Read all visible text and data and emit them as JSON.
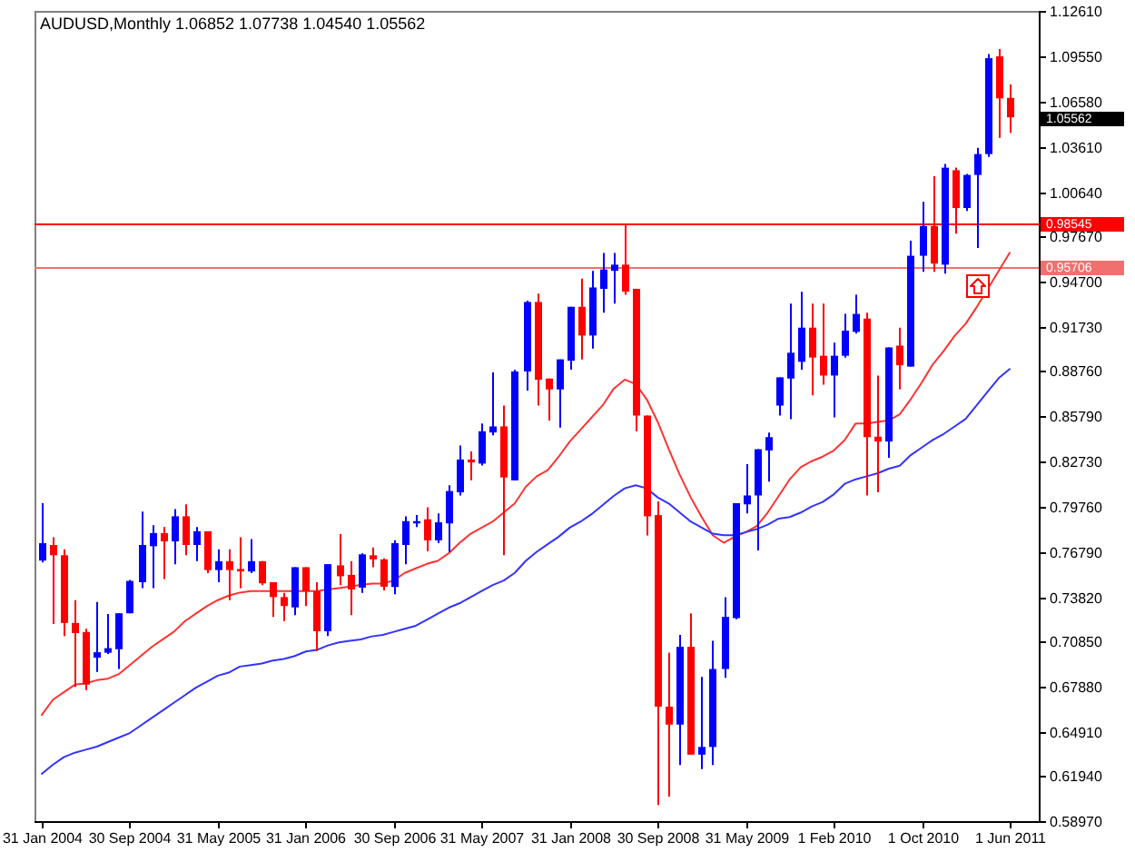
{
  "chart_data": {
    "type": "candlestick",
    "title": "AUDUSD,Monthly 1.06852 1.07738 1.04540 1.05562",
    "categories": [
      "31 Jan 2004",
      null,
      null,
      null,
      null,
      null,
      null,
      null,
      "30 Sep 2004",
      null,
      null,
      null,
      null,
      null,
      null,
      null,
      "31 May 2005",
      null,
      null,
      null,
      null,
      null,
      null,
      null,
      "31 Jan 2006",
      null,
      null,
      null,
      null,
      null,
      null,
      null,
      "30 Sep 2006",
      null,
      null,
      null,
      null,
      null,
      null,
      null,
      "31 May 2007",
      null,
      null,
      null,
      null,
      null,
      null,
      null,
      "31 Jan 2008",
      null,
      null,
      null,
      null,
      null,
      null,
      null,
      "30 Sep 2008",
      null,
      null,
      null,
      null,
      null,
      null,
      null,
      "31 May 2009",
      null,
      null,
      null,
      null,
      null,
      null,
      null,
      "1 Feb 2010",
      null,
      null,
      null,
      null,
      null,
      null,
      null,
      "1 Oct 2010",
      null,
      null,
      null,
      null,
      null,
      null,
      null,
      "1 Jun 2011"
    ],
    "ohlc": [
      [
        0.7622,
        0.8002,
        0.761,
        0.7737
      ],
      [
        0.7725,
        0.7776,
        0.7202,
        0.7657
      ],
      [
        0.7657,
        0.7697,
        0.7122,
        0.7209
      ],
      [
        0.7209,
        0.736,
        0.6785,
        0.7142
      ],
      [
        0.7149,
        0.717,
        0.6765,
        0.6801
      ],
      [
        0.6979,
        0.7348,
        0.6884,
        0.7015
      ],
      [
        0.7012,
        0.7268,
        0.7003,
        0.7042
      ],
      [
        0.7035,
        0.7273,
        0.6904,
        0.7273
      ],
      [
        0.7273,
        0.7494,
        0.7273,
        0.7487
      ],
      [
        0.7479,
        0.7946,
        0.744,
        0.7725
      ],
      [
        0.7717,
        0.7856,
        0.744,
        0.7804
      ],
      [
        0.7804,
        0.7844,
        0.7499,
        0.7749
      ],
      [
        0.7749,
        0.7963,
        0.7598,
        0.7915
      ],
      [
        0.7915,
        0.7994,
        0.7657,
        0.7725
      ],
      [
        0.7725,
        0.7844,
        0.7618,
        0.7816
      ],
      [
        0.7816,
        0.7816,
        0.7538,
        0.7559
      ],
      [
        0.7559,
        0.7697,
        0.7479,
        0.7618
      ],
      [
        0.7618,
        0.7697,
        0.736,
        0.7559
      ],
      [
        0.7566,
        0.7776,
        0.744,
        0.755
      ],
      [
        0.755,
        0.7764,
        0.7538,
        0.7618
      ],
      [
        0.7618,
        0.7618,
        0.7459,
        0.7471
      ],
      [
        0.7479,
        0.7479,
        0.7249,
        0.738
      ],
      [
        0.738,
        0.7408,
        0.7221,
        0.7321
      ],
      [
        0.7312,
        0.7578,
        0.7261,
        0.7578
      ],
      [
        0.7578,
        0.7578,
        0.7321,
        0.7419
      ],
      [
        0.7419,
        0.7479,
        0.7023,
        0.7154
      ],
      [
        0.7154,
        0.7598,
        0.7122,
        0.7598
      ],
      [
        0.759,
        0.7797,
        0.7459,
        0.7518
      ],
      [
        0.7527,
        0.7618,
        0.7261,
        0.7431
      ],
      [
        0.7443,
        0.7669,
        0.7408,
        0.7663
      ],
      [
        0.7657,
        0.7709,
        0.7578,
        0.763
      ],
      [
        0.763,
        0.7637,
        0.7425,
        0.7449
      ],
      [
        0.7447,
        0.7756,
        0.7399,
        0.7737
      ],
      [
        0.7725,
        0.7915,
        0.7598,
        0.7883
      ],
      [
        0.7868,
        0.7923,
        0.7844,
        0.7883
      ],
      [
        0.7895,
        0.7975,
        0.7685,
        0.7756
      ],
      [
        0.7756,
        0.7934,
        0.7737,
        0.7875
      ],
      [
        0.7868,
        0.8121,
        0.7678,
        0.8082
      ],
      [
        0.8074,
        0.8383,
        0.8053,
        0.8291
      ],
      [
        0.8291,
        0.8344,
        0.8153,
        0.8272
      ],
      [
        0.8264,
        0.8529,
        0.8252,
        0.8478
      ],
      [
        0.847,
        0.8867,
        0.8451,
        0.851
      ],
      [
        0.851,
        0.8648,
        0.7657,
        0.8172
      ],
      [
        0.8153,
        0.8886,
        0.8153,
        0.8874
      ],
      [
        0.8874,
        0.9343,
        0.8748,
        0.9334
      ],
      [
        0.9334,
        0.939,
        0.8648,
        0.8819
      ],
      [
        0.8827,
        0.8827,
        0.8549,
        0.8755
      ],
      [
        0.8755,
        0.8954,
        0.8502,
        0.8954
      ],
      [
        0.8945,
        0.9302,
        0.8886,
        0.9302
      ],
      [
        0.9302,
        0.9489,
        0.8954,
        0.9112
      ],
      [
        0.9112,
        0.954,
        0.9025,
        0.943
      ],
      [
        0.9421,
        0.9659,
        0.9263,
        0.9549
      ],
      [
        0.954,
        0.9659,
        0.9323,
        0.9581
      ],
      [
        0.9581,
        0.9854,
        0.9382,
        0.9402
      ],
      [
        0.9421,
        0.9421,
        0.8478,
        0.8582
      ],
      [
        0.8582,
        0.8582,
        0.7788,
        0.7915
      ],
      [
        0.7923,
        0.8014,
        0.6004,
        0.6655
      ],
      [
        0.6655,
        0.7012,
        0.606,
        0.6536
      ],
      [
        0.6536,
        0.713,
        0.6269,
        0.7051
      ],
      [
        0.7051,
        0.7273,
        0.6337,
        0.6337
      ],
      [
        0.6337,
        0.6852,
        0.6242,
        0.6388
      ],
      [
        0.6388,
        0.709,
        0.6269,
        0.6904
      ],
      [
        0.6904,
        0.738,
        0.6845,
        0.7249
      ],
      [
        0.7241,
        0.8002,
        0.7233,
        0.8002
      ],
      [
        0.7994,
        0.826,
        0.7934,
        0.8053
      ],
      [
        0.8053,
        0.8359,
        0.7689,
        0.8359
      ],
      [
        0.8351,
        0.847,
        0.8145,
        0.8439
      ],
      [
        0.8648,
        0.8835,
        0.8582,
        0.8835
      ],
      [
        0.8827,
        0.9323,
        0.8558,
        0.8998
      ],
      [
        0.8938,
        0.9402,
        0.8886,
        0.9164
      ],
      [
        0.9164,
        0.9323,
        0.8716,
        0.8966
      ],
      [
        0.8978,
        0.9323,
        0.8787,
        0.8847
      ],
      [
        0.8847,
        0.9064,
        0.857,
        0.8978
      ],
      [
        0.8978,
        0.9255,
        0.8966,
        0.9144
      ],
      [
        0.9136,
        0.9382,
        0.9124,
        0.9255
      ],
      [
        0.9224,
        0.9263,
        0.8053,
        0.8439
      ],
      [
        0.8442,
        0.8847,
        0.8074,
        0.841
      ],
      [
        0.841,
        0.9033,
        0.8303,
        0.9033
      ],
      [
        0.9045,
        0.9164,
        0.8755,
        0.8915
      ],
      [
        0.8906,
        0.9739,
        0.8906,
        0.964
      ],
      [
        0.964,
        0.9997,
        0.9533,
        0.9837
      ],
      [
        0.9837,
        1.0167,
        0.9533,
        0.9588
      ],
      [
        0.9581,
        1.0247,
        0.9521,
        1.0223
      ],
      [
        1.0206,
        1.0223,
        0.9786,
        0.9956
      ],
      [
        0.9956,
        1.0182,
        0.9937,
        1.0175
      ],
      [
        1.0175,
        1.0354,
        0.9691,
        1.0313
      ],
      [
        1.0313,
        1.0976,
        1.0294,
        1.0948
      ],
      [
        1.096,
        1.1008,
        1.042,
        1.0682
      ],
      [
        1.06852,
        1.07738,
        1.0454,
        1.05562
      ]
    ],
    "colors": [
      "#0000ff",
      "#ff0000",
      "#ff0000",
      "#ff0000",
      "#ff0000",
      "#0000ff",
      "#0000ff",
      "#0000ff",
      "#0000ff",
      "#0000ff",
      "#0000ff",
      "#ff0000",
      "#0000ff",
      "#ff0000",
      "#0000ff",
      "#ff0000",
      "#0000ff",
      "#ff0000",
      "#ff0000",
      "#0000ff",
      "#ff0000",
      "#ff0000",
      "#ff0000",
      "#0000ff",
      "#ff0000",
      "#ff0000",
      "#0000ff",
      "#ff0000",
      "#ff0000",
      "#0000ff",
      "#ff0000",
      "#ff0000",
      "#0000ff",
      "#0000ff",
      "#0000ff",
      "#ff0000",
      "#0000ff",
      "#0000ff",
      "#0000ff",
      "#ff0000",
      "#0000ff",
      "#0000ff",
      "#ff0000",
      "#0000ff",
      "#0000ff",
      "#ff0000",
      "#ff0000",
      "#0000ff",
      "#0000ff",
      "#ff0000",
      "#0000ff",
      "#0000ff",
      "#0000ff",
      "#ff0000",
      "#ff0000",
      "#ff0000",
      "#ff0000",
      "#ff0000",
      "#0000ff",
      "#ff0000",
      "#0000ff",
      "#0000ff",
      "#0000ff",
      "#0000ff",
      "#0000ff",
      "#0000ff",
      "#0000ff",
      "#0000ff",
      "#0000ff",
      "#0000ff",
      "#ff0000",
      "#ff0000",
      "#0000ff",
      "#0000ff",
      "#0000ff",
      "#ff0000",
      "#ff0000",
      "#0000ff",
      "#ff0000",
      "#0000ff",
      "#0000ff",
      "#ff0000",
      "#0000ff",
      "#ff0000",
      "#0000ff",
      "#0000ff",
      "#0000ff",
      "#ff0000",
      "#ff0000"
    ],
    "series": [
      {
        "type": "line",
        "color": "#ff3333",
        "values": [
          0.66,
          0.67,
          0.675,
          0.68,
          0.681,
          0.683,
          0.684,
          0.687,
          0.693,
          0.699,
          0.705,
          0.71,
          0.715,
          0.722,
          0.727,
          0.732,
          0.736,
          0.739,
          0.741,
          0.742,
          0.742,
          0.742,
          0.742,
          0.742,
          0.742,
          0.742,
          0.743,
          0.744,
          0.745,
          0.746,
          0.747,
          0.747,
          0.749,
          0.754,
          0.757,
          0.76,
          0.762,
          0.767,
          0.774,
          0.78,
          0.784,
          0.788,
          0.794,
          0.8,
          0.811,
          0.818,
          0.822,
          0.831,
          0.841,
          0.849,
          0.857,
          0.865,
          0.876,
          0.882,
          0.879,
          0.869,
          0.854,
          0.836,
          0.819,
          0.804,
          0.791,
          0.779,
          0.774,
          0.778,
          0.781,
          0.785,
          0.794,
          0.805,
          0.816,
          0.824,
          0.828,
          0.831,
          0.835,
          0.842,
          0.853,
          0.853,
          0.854,
          0.855,
          0.859,
          0.869,
          0.88,
          0.892,
          0.901,
          0.911,
          0.919,
          0.93,
          0.942,
          0.954,
          0.966
        ]
      },
      {
        "type": "line",
        "color": "#3333ff",
        "values": [
          0.621,
          0.627,
          0.632,
          0.635,
          0.637,
          0.639,
          0.642,
          0.645,
          0.648,
          0.653,
          0.658,
          0.663,
          0.668,
          0.673,
          0.678,
          0.682,
          0.686,
          0.688,
          0.692,
          0.693,
          0.694,
          0.696,
          0.697,
          0.699,
          0.702,
          0.703,
          0.706,
          0.708,
          0.709,
          0.71,
          0.712,
          0.713,
          0.715,
          0.717,
          0.719,
          0.723,
          0.727,
          0.731,
          0.734,
          0.738,
          0.742,
          0.746,
          0.749,
          0.754,
          0.762,
          0.768,
          0.773,
          0.778,
          0.784,
          0.788,
          0.793,
          0.799,
          0.805,
          0.81,
          0.812,
          0.81,
          0.804,
          0.8,
          0.794,
          0.788,
          0.784,
          0.78,
          0.779,
          0.779,
          0.781,
          0.783,
          0.786,
          0.79,
          0.791,
          0.794,
          0.798,
          0.801,
          0.806,
          0.813,
          0.816,
          0.818,
          0.82,
          0.823,
          0.825,
          0.832,
          0.837,
          0.842,
          0.846,
          0.851,
          0.856,
          0.865,
          0.874,
          0.883,
          0.889
        ]
      }
    ],
    "ylim": [
      0.5897,
      1.1261
    ],
    "yticks": [
      {
        "value": 1.1261,
        "label": "1.12610"
      },
      {
        "value": 1.0955,
        "label": "1.09550"
      },
      {
        "value": 1.0658,
        "label": "1.06580"
      },
      {
        "value": 1.0361,
        "label": "1.03610"
      },
      {
        "value": 1.0064,
        "label": "1.00640"
      },
      {
        "value": 0.9767,
        "label": "0.97670"
      },
      {
        "value": 0.947,
        "label": "0.94700"
      },
      {
        "value": 0.9173,
        "label": "0.91730"
      },
      {
        "value": 0.8876,
        "label": "0.88760"
      },
      {
        "value": 0.8579,
        "label": "0.85790"
      },
      {
        "value": 0.8273,
        "label": "0.82730"
      },
      {
        "value": 0.7976,
        "label": "0.79760"
      },
      {
        "value": 0.7679,
        "label": "0.76790"
      },
      {
        "value": 0.7382,
        "label": "0.73820"
      },
      {
        "value": 0.7085,
        "label": "0.70850"
      },
      {
        "value": 0.6788,
        "label": "0.67880"
      },
      {
        "value": 0.6491,
        "label": "0.64910"
      },
      {
        "value": 0.6194,
        "label": "0.61940"
      },
      {
        "value": 0.5897,
        "label": "0.58970"
      }
    ],
    "ref_lines": [
      {
        "axis": "y",
        "value": 0.98545,
        "label": "0.98545",
        "color": "#ff0000"
      },
      {
        "axis": "y",
        "value": 0.95706,
        "label": "0.95706",
        "color": "#f07070"
      }
    ],
    "annotations": [
      "1.05562"
    ]
  }
}
